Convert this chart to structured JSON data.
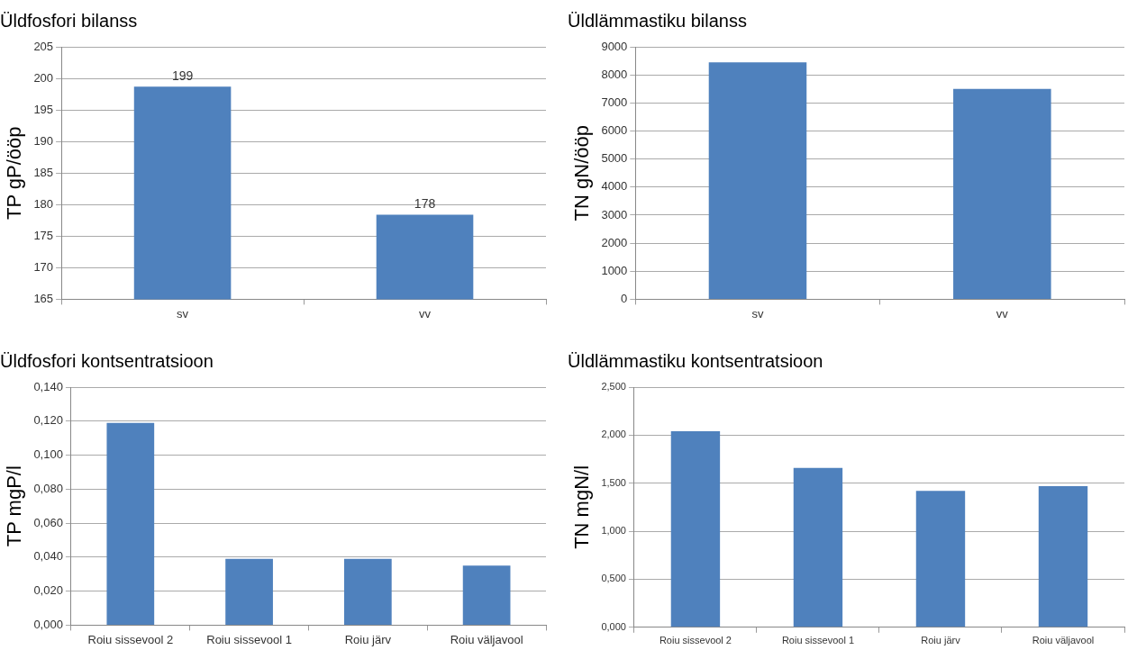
{
  "chart_data": [
    {
      "type": "bar",
      "title": "Üldfosfori bilanss",
      "ylabel": "TP gP/ööp",
      "categories": [
        "sv",
        "vv"
      ],
      "values": [
        198.7,
        178.4
      ],
      "value_labels": [
        "199",
        "178"
      ],
      "color": "#4f81bd",
      "ylim": [
        165,
        205
      ],
      "yticks": [
        165,
        170,
        175,
        180,
        185,
        190,
        195,
        200,
        205
      ],
      "grid": "y",
      "legend": false
    },
    {
      "type": "bar",
      "title": "Üldlämmastiku bilanss",
      "ylabel": "TN gN/ööp",
      "categories": [
        "sv",
        "vv"
      ],
      "values": [
        8450,
        7500
      ],
      "color": "#4f81bd",
      "ylim": [
        0,
        9000
      ],
      "yticks": [
        0,
        1000,
        2000,
        3000,
        4000,
        5000,
        6000,
        7000,
        8000,
        9000
      ],
      "grid": "y",
      "legend": false
    },
    {
      "type": "bar",
      "title": "Üldfosfori kontsentratsioon",
      "ylabel": "TP mgP/l",
      "categories": [
        "Roiu sissevool 2",
        "Roiu sissevool 1",
        "Roiu järv",
        "Roiu väljavool"
      ],
      "values": [
        0.119,
        0.039,
        0.039,
        0.035
      ],
      "color": "#4f81bd",
      "ylim": [
        0,
        0.14
      ],
      "yticks": [
        {
          "value": 0,
          "label": "0,000"
        },
        {
          "value": 0.02,
          "label": "0,020"
        },
        {
          "value": 0.04,
          "label": "0,040"
        },
        {
          "value": 0.06,
          "label": "0,060"
        },
        {
          "value": 0.08,
          "label": "0,080"
        },
        {
          "value": 0.1,
          "label": "0,100"
        },
        {
          "value": 0.12,
          "label": "0,120"
        },
        {
          "value": 0.14,
          "label": "0,140"
        }
      ],
      "grid": "y",
      "legend": false
    },
    {
      "type": "bar",
      "title": "Üldlämmastiku kontsentratsioon",
      "ylabel": "TN mgN/l",
      "categories": [
        "Roiu sissevool 2",
        "Roiu sissevool 1",
        "Roiu järv",
        "Roiu väljavool"
      ],
      "values": [
        2.04,
        1.66,
        1.42,
        1.47
      ],
      "color": "#4f81bd",
      "ylim": [
        0,
        2.5
      ],
      "yticks": [
        {
          "value": 0,
          "label": "0,000"
        },
        {
          "value": 0.5,
          "label": "0,500"
        },
        {
          "value": 1,
          "label": "1,000"
        },
        {
          "value": 1.5,
          "label": "1,500"
        },
        {
          "value": 2,
          "label": "2,000"
        },
        {
          "value": 2.5,
          "label": "2,500"
        }
      ],
      "grid": "y",
      "legend": false
    }
  ]
}
